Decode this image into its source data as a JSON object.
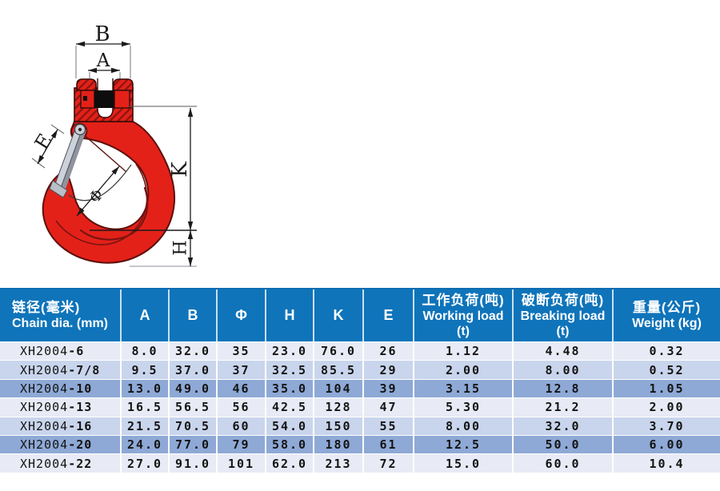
{
  "colors": {
    "header_blue": "#0f74ba",
    "header_border": "#0d6bb0",
    "stripe_light": "#e8ebf5",
    "stripe_mid": "#c9d5ec",
    "stripe_dark": "#8ea9d6",
    "hook_red": "#e32119"
  },
  "diagram": {
    "labels": {
      "b": "B",
      "a": "A",
      "e": "E",
      "k": "K",
      "h": "H",
      "phi": "Φ"
    }
  },
  "table": {
    "header": {
      "chain_zh": "链径(毫米)",
      "chain_en": "Chain dia. (mm)",
      "dims": [
        "A",
        "B",
        "Φ",
        "H",
        "K",
        "E"
      ],
      "working_zh": "工作负荷(吨)",
      "working_en": "Working load",
      "working_unit": "(t)",
      "breaking_zh": "破断负荷(吨)",
      "breaking_en": "Breaking load",
      "breaking_unit": "(t)",
      "weight_zh": "重量(公斤)",
      "weight_en": "Weight (kg)"
    },
    "rows": [
      {
        "prefix": "XH2004",
        "suffix": "-6",
        "values": [
          "8.0",
          "32.0",
          "35",
          "23.0",
          "76.0",
          "26",
          "1.12",
          "4.48",
          "0.32"
        ]
      },
      {
        "prefix": "XH2004",
        "suffix": "-7/8",
        "values": [
          "9.5",
          "37.0",
          "37",
          "32.5",
          "85.5",
          "29",
          "2.00",
          "8.00",
          "0.52"
        ]
      },
      {
        "prefix": "XH2004",
        "suffix": "-10",
        "values": [
          "13.0",
          "49.0",
          "46",
          "35.0",
          "104",
          "39",
          "3.15",
          "12.8",
          "1.05"
        ]
      },
      {
        "prefix": "XH2004",
        "suffix": "-13",
        "values": [
          "16.5",
          "56.5",
          "56",
          "42.5",
          "128",
          "47",
          "5.30",
          "21.2",
          "2.00"
        ]
      },
      {
        "prefix": "XH2004",
        "suffix": "-16",
        "values": [
          "21.5",
          "70.5",
          "60",
          "54.0",
          "150",
          "55",
          "8.00",
          "32.0",
          "3.70"
        ]
      },
      {
        "prefix": "XH2004",
        "suffix": "-20",
        "values": [
          "24.0",
          "77.0",
          "79",
          "58.0",
          "180",
          "61",
          "12.5",
          "50.0",
          "6.00"
        ]
      },
      {
        "prefix": "XH2004",
        "suffix": "-22",
        "values": [
          "27.0",
          "91.0",
          "101",
          "62.0",
          "213",
          "72",
          "15.0",
          "60.0",
          "10.4"
        ]
      }
    ]
  }
}
